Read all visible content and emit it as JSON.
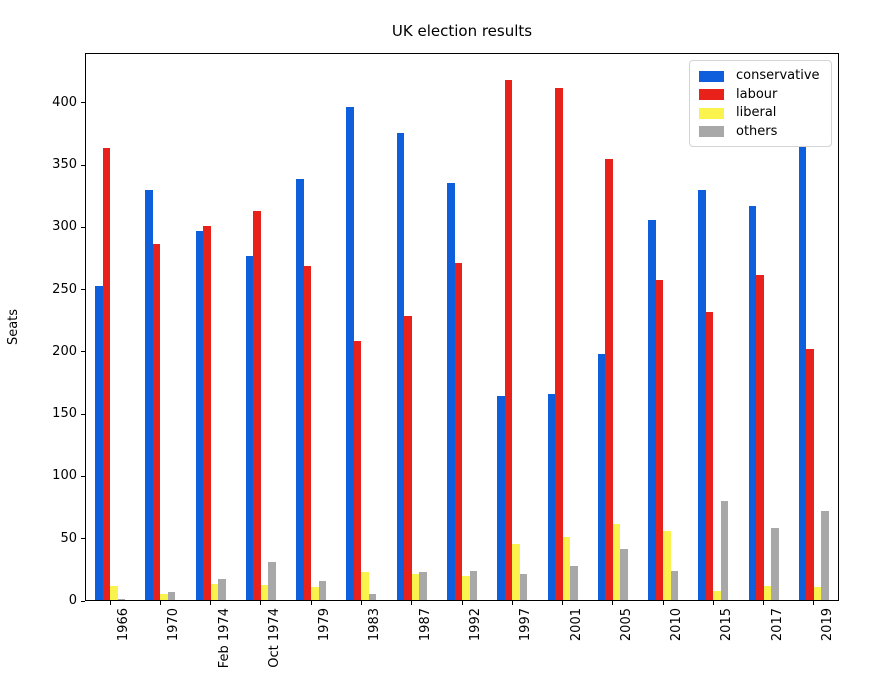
{
  "chart_data": {
    "type": "bar",
    "title": "UK election results",
    "xlabel": "",
    "ylabel": "Seats",
    "categories": [
      "1966",
      "1970",
      "Feb 1974",
      "Oct 1974",
      "1979",
      "1983",
      "1987",
      "1992",
      "1997",
      "2001",
      "2005",
      "2010",
      "2015",
      "2017",
      "2019"
    ],
    "series": [
      {
        "name": "conservative",
        "color": "#0F5FDC",
        "values": [
          253,
          330,
          297,
          277,
          339,
          397,
          376,
          336,
          165,
          166,
          198,
          306,
          330,
          317,
          365
        ]
      },
      {
        "name": "labour",
        "color": "#E8221B",
        "values": [
          364,
          287,
          301,
          313,
          269,
          209,
          229,
          271,
          418,
          412,
          355,
          258,
          232,
          262,
          202
        ]
      },
      {
        "name": "liberal",
        "color": "#FAF24D",
        "values": [
          12,
          6,
          14,
          13,
          11,
          23,
          22,
          20,
          46,
          51,
          62,
          56,
          8,
          12,
          11
        ]
      },
      {
        "name": "others",
        "color": "#A8A8A8",
        "values": [
          2,
          7,
          18,
          31,
          16,
          6,
          23,
          24,
          22,
          28,
          42,
          24,
          80,
          59,
          72
        ]
      }
    ],
    "ylim": [
      0,
      440
    ],
    "yticks": [
      0,
      50,
      100,
      150,
      200,
      250,
      300,
      350,
      400
    ],
    "legend_position": "upper right",
    "grid": false,
    "x_tick_rotation_deg": 90
  }
}
